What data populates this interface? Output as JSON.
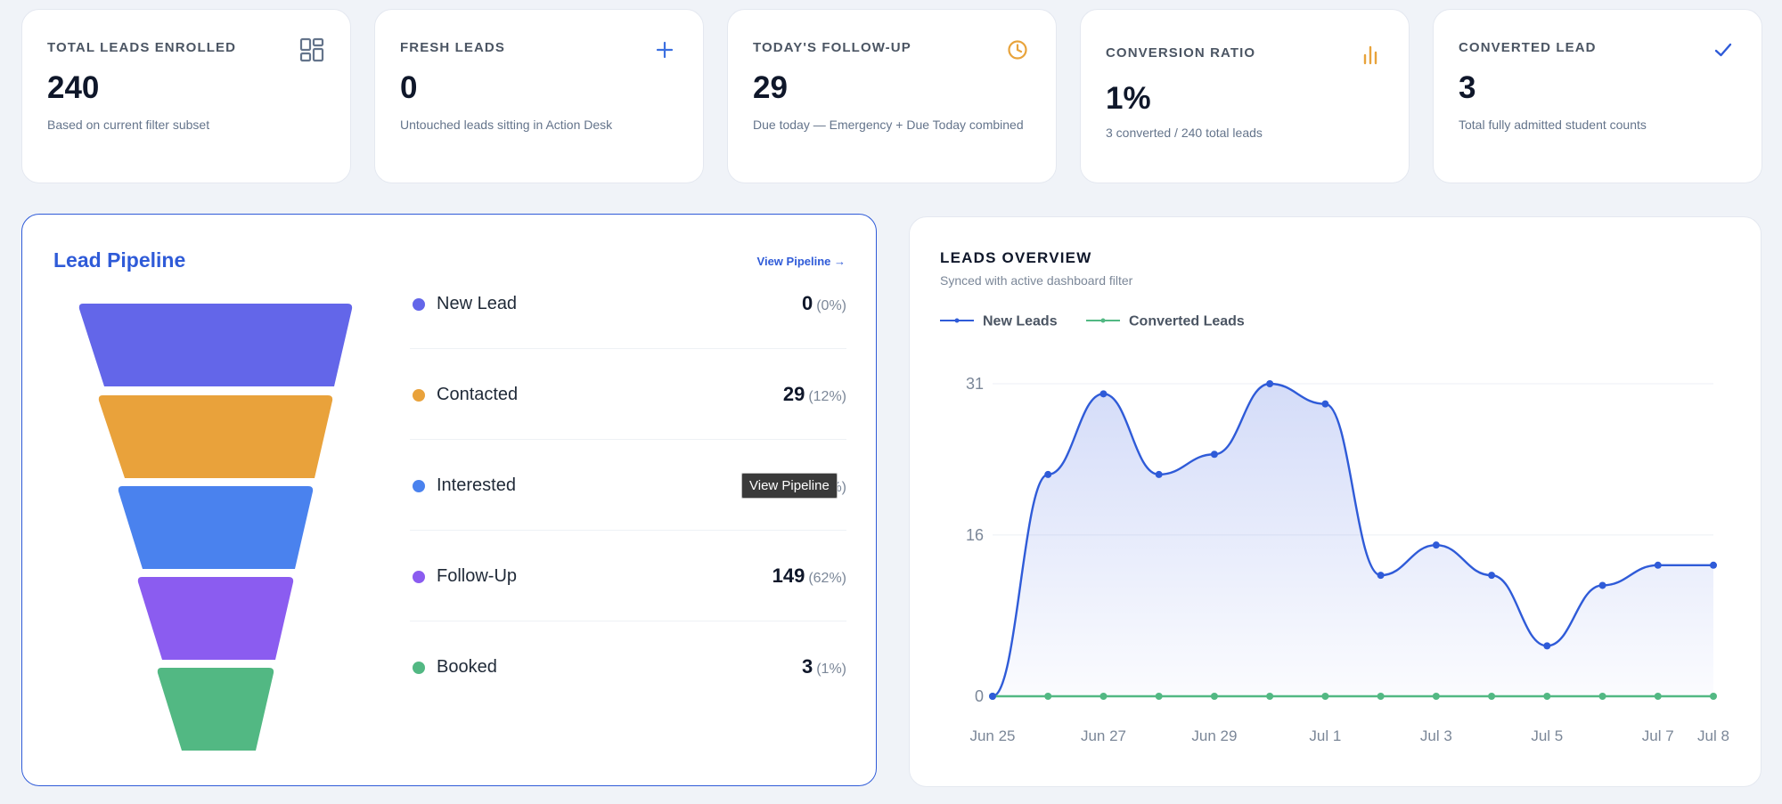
{
  "stats": [
    {
      "title": "TOTAL LEADS ENROLLED",
      "value": "240",
      "sub": "Based on current filter subset",
      "icon": "dashboard-grid-icon",
      "color": "#64748b"
    },
    {
      "title": "FRESH LEADS",
      "value": "0",
      "sub": "Untouched leads sitting in Action Desk",
      "icon": "plus-icon",
      "color": "#3b6fe0"
    },
    {
      "title": "TODAY'S FOLLOW-UP",
      "value": "29",
      "sub": "Due today — Emergency + Due Today combined",
      "icon": "clock-icon",
      "color": "#e8a33b"
    },
    {
      "title": "CONVERSION RATIO",
      "value": "1%",
      "sub": "3 converted / 240 total leads",
      "icon": "bar-chart-icon",
      "color": "#e8a33b"
    },
    {
      "title": "CONVERTED LEAD",
      "value": "3",
      "sub": "Total fully admitted student counts",
      "icon": "checkmark-icon",
      "color": "#2f5bd8"
    }
  ],
  "pipeline": {
    "title": "Lead Pipeline",
    "link": "View Pipeline →",
    "tooltip": "View Pipeline",
    "stages": [
      {
        "name": "New Lead",
        "count": "0",
        "pct": "(0%)",
        "color": "#6366e9"
      },
      {
        "name": "Contacted",
        "count": "29",
        "pct": "(12%)",
        "color": "#e9a23b"
      },
      {
        "name": "Interested",
        "count": "4",
        "pct": "(2%)",
        "color": "#4a82ee"
      },
      {
        "name": "Follow-Up",
        "count": "149",
        "pct": "(62%)",
        "color": "#8b5cf0"
      },
      {
        "name": "Booked",
        "count": "3",
        "pct": "(1%)",
        "color": "#52b883"
      }
    ]
  },
  "overview": {
    "title": "LEADS OVERVIEW",
    "subtitle": "Synced with active dashboard filter"
  },
  "chart_data": {
    "type": "line",
    "x": [
      "Jun 25",
      "Jun 26",
      "Jun 27",
      "Jun 28",
      "Jun 29",
      "Jun 30",
      "Jul 1",
      "Jul 2",
      "Jul 3",
      "Jul 4",
      "Jul 5",
      "Jul 6",
      "Jul 7",
      "Jul 8"
    ],
    "x_tick_labels": [
      "Jun 25",
      "",
      "Jun 27",
      "",
      "Jun 29",
      "",
      "Jul 1",
      "",
      "Jul 3",
      "",
      "Jul 5",
      "",
      "Jul 7",
      "Jul 8"
    ],
    "y_ticks": [
      0,
      16,
      31
    ],
    "ylim": [
      0,
      31
    ],
    "grid": true,
    "legend_position": "top-left",
    "series": [
      {
        "name": "New Leads",
        "color": "#2f5bd8",
        "values": [
          0,
          22,
          30,
          22,
          24,
          31,
          29,
          12,
          15,
          12,
          5,
          11,
          13,
          13
        ]
      },
      {
        "name": "Converted Leads",
        "color": "#52b883",
        "values": [
          0,
          0,
          0,
          0,
          0,
          0,
          0,
          0,
          0,
          0,
          0,
          0,
          0,
          0
        ]
      }
    ]
  }
}
